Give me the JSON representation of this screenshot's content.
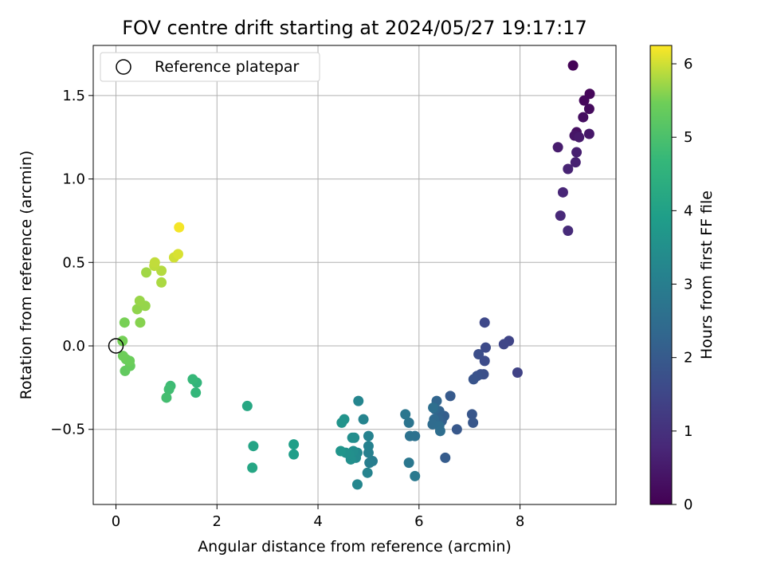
{
  "chart_data": {
    "type": "scatter",
    "title": "FOV centre drift starting at 2024/05/27 19:17:17",
    "xlabel": "Angular distance from reference (arcmin)",
    "ylabel": "Rotation from reference (arcmin)",
    "xlim": [
      -0.45,
      9.9
    ],
    "ylim": [
      -0.95,
      1.8
    ],
    "xticks": [
      0,
      2,
      4,
      6,
      8
    ],
    "yticks": [
      -0.5,
      0.0,
      0.5,
      1.0,
      1.5
    ],
    "xtick_labels": [
      "0",
      "2",
      "4",
      "6",
      "8"
    ],
    "ytick_labels": [
      "−0.5",
      "0.0",
      "0.5",
      "1.0",
      "1.5"
    ],
    "grid": true,
    "legend": {
      "placement": "upper-left",
      "entries": [
        {
          "label": "Reference platepar",
          "marker": "open-circle"
        }
      ]
    },
    "reference_point": {
      "x": 0,
      "y": 0
    },
    "colorbar": {
      "label": "Hours from first FF file",
      "colormap": "viridis",
      "range": [
        0,
        6.25
      ],
      "ticks": [
        0,
        1,
        2,
        3,
        4,
        5,
        6
      ],
      "tick_labels": [
        "0",
        "1",
        "2",
        "3",
        "4",
        "5",
        "6"
      ]
    },
    "series": [
      {
        "color_by": "hours",
        "points": [
          {
            "x": 9.05,
            "y": 1.68,
            "c": 0.05
          },
          {
            "x": 9.38,
            "y": 1.51,
            "c": 0.1
          },
          {
            "x": 9.27,
            "y": 1.47,
            "c": 0.15
          },
          {
            "x": 9.37,
            "y": 1.42,
            "c": 0.2
          },
          {
            "x": 9.25,
            "y": 1.37,
            "c": 0.25
          },
          {
            "x": 9.12,
            "y": 1.28,
            "c": 0.3
          },
          {
            "x": 9.14,
            "y": 1.26,
            "c": 0.35
          },
          {
            "x": 9.08,
            "y": 1.26,
            "c": 0.4
          },
          {
            "x": 9.37,
            "y": 1.27,
            "c": 0.45
          },
          {
            "x": 9.17,
            "y": 1.25,
            "c": 0.5
          },
          {
            "x": 8.75,
            "y": 1.19,
            "c": 0.55
          },
          {
            "x": 9.12,
            "y": 1.16,
            "c": 0.6
          },
          {
            "x": 9.1,
            "y": 1.1,
            "c": 0.65
          },
          {
            "x": 8.95,
            "y": 1.06,
            "c": 0.7
          },
          {
            "x": 8.85,
            "y": 0.92,
            "c": 0.75
          },
          {
            "x": 8.8,
            "y": 0.78,
            "c": 0.8
          },
          {
            "x": 8.95,
            "y": 0.69,
            "c": 0.85
          },
          {
            "x": 7.95,
            "y": -0.16,
            "c": 1.4
          },
          {
            "x": 7.78,
            "y": 0.03,
            "c": 1.45
          },
          {
            "x": 7.68,
            "y": 0.01,
            "c": 1.5
          },
          {
            "x": 7.3,
            "y": 0.14,
            "c": 1.55
          },
          {
            "x": 7.32,
            "y": -0.01,
            "c": 1.6
          },
          {
            "x": 7.3,
            "y": -0.09,
            "c": 1.65
          },
          {
            "x": 7.18,
            "y": -0.05,
            "c": 1.7
          },
          {
            "x": 7.28,
            "y": -0.17,
            "c": 1.72
          },
          {
            "x": 7.22,
            "y": -0.17,
            "c": 1.75
          },
          {
            "x": 7.15,
            "y": -0.18,
            "c": 1.8
          },
          {
            "x": 7.08,
            "y": -0.2,
            "c": 1.85
          },
          {
            "x": 7.05,
            "y": -0.41,
            "c": 1.9
          },
          {
            "x": 7.07,
            "y": -0.46,
            "c": 1.92
          },
          {
            "x": 6.75,
            "y": -0.5,
            "c": 1.95
          },
          {
            "x": 6.62,
            "y": -0.3,
            "c": 2.0
          },
          {
            "x": 6.52,
            "y": -0.67,
            "c": 2.05
          },
          {
            "x": 6.5,
            "y": -0.42,
            "c": 2.1
          },
          {
            "x": 6.45,
            "y": -0.45,
            "c": 2.15
          },
          {
            "x": 6.4,
            "y": -0.39,
            "c": 2.2
          },
          {
            "x": 6.38,
            "y": -0.44,
            "c": 2.25
          },
          {
            "x": 6.35,
            "y": -0.33,
            "c": 2.3
          },
          {
            "x": 6.32,
            "y": -0.38,
            "c": 2.35
          },
          {
            "x": 6.3,
            "y": -0.44,
            "c": 2.4
          },
          {
            "x": 6.27,
            "y": -0.47,
            "c": 2.45
          },
          {
            "x": 6.4,
            "y": -0.48,
            "c": 2.5
          },
          {
            "x": 6.42,
            "y": -0.51,
            "c": 2.52
          },
          {
            "x": 6.28,
            "y": -0.37,
            "c": 2.55
          },
          {
            "x": 5.92,
            "y": -0.54,
            "c": 2.6
          },
          {
            "x": 5.82,
            "y": -0.54,
            "c": 2.65
          },
          {
            "x": 5.8,
            "y": -0.46,
            "c": 2.7
          },
          {
            "x": 5.73,
            "y": -0.41,
            "c": 2.75
          },
          {
            "x": 5.8,
            "y": -0.7,
            "c": 2.8
          },
          {
            "x": 5.92,
            "y": -0.78,
            "c": 2.85
          },
          {
            "x": 5.08,
            "y": -0.69,
            "c": 2.95
          },
          {
            "x": 5.02,
            "y": -0.7,
            "c": 3.0
          },
          {
            "x": 5.0,
            "y": -0.64,
            "c": 3.05
          },
          {
            "x": 5.0,
            "y": -0.6,
            "c": 3.1
          },
          {
            "x": 5.0,
            "y": -0.54,
            "c": 3.12
          },
          {
            "x": 4.98,
            "y": -0.76,
            "c": 3.15
          },
          {
            "x": 4.9,
            "y": -0.44,
            "c": 3.18
          },
          {
            "x": 4.8,
            "y": -0.33,
            "c": 3.2
          },
          {
            "x": 4.78,
            "y": -0.83,
            "c": 3.25
          },
          {
            "x": 4.78,
            "y": -0.64,
            "c": 3.3
          },
          {
            "x": 4.75,
            "y": -0.67,
            "c": 3.35
          },
          {
            "x": 4.72,
            "y": -0.55,
            "c": 3.4
          },
          {
            "x": 4.7,
            "y": -0.63,
            "c": 3.42
          },
          {
            "x": 4.68,
            "y": -0.55,
            "c": 3.45
          },
          {
            "x": 4.65,
            "y": -0.68,
            "c": 3.48
          },
          {
            "x": 4.62,
            "y": -0.65,
            "c": 3.5
          },
          {
            "x": 4.55,
            "y": -0.64,
            "c": 3.55
          },
          {
            "x": 4.52,
            "y": -0.44,
            "c": 3.6
          },
          {
            "x": 4.47,
            "y": -0.46,
            "c": 3.62
          },
          {
            "x": 4.45,
            "y": -0.63,
            "c": 3.65
          },
          {
            "x": 3.52,
            "y": -0.65,
            "c": 3.9
          },
          {
            "x": 3.52,
            "y": -0.59,
            "c": 3.95
          },
          {
            "x": 2.72,
            "y": -0.6,
            "c": 4.1
          },
          {
            "x": 2.7,
            "y": -0.73,
            "c": 4.15
          },
          {
            "x": 2.6,
            "y": -0.36,
            "c": 4.2
          },
          {
            "x": 1.6,
            "y": -0.22,
            "c": 4.6
          },
          {
            "x": 1.58,
            "y": -0.28,
            "c": 4.65
          },
          {
            "x": 1.52,
            "y": -0.2,
            "c": 4.7
          },
          {
            "x": 1.08,
            "y": -0.24,
            "c": 4.8
          },
          {
            "x": 1.05,
            "y": -0.26,
            "c": 4.85
          },
          {
            "x": 1.0,
            "y": -0.31,
            "c": 4.9
          },
          {
            "x": 0.18,
            "y": -0.15,
            "c": 5.3
          },
          {
            "x": 0.28,
            "y": -0.12,
            "c": 5.35
          },
          {
            "x": 0.2,
            "y": -0.08,
            "c": 5.4
          },
          {
            "x": 0.27,
            "y": -0.09,
            "c": 5.42
          },
          {
            "x": 0.14,
            "y": -0.06,
            "c": 5.45
          },
          {
            "x": 0.13,
            "y": 0.03,
            "c": 5.5
          },
          {
            "x": 0.17,
            "y": 0.14,
            "c": 5.52
          },
          {
            "x": 0.48,
            "y": 0.14,
            "c": 5.6
          },
          {
            "x": 0.42,
            "y": 0.22,
            "c": 5.65
          },
          {
            "x": 0.58,
            "y": 0.24,
            "c": 5.68
          },
          {
            "x": 0.47,
            "y": 0.27,
            "c": 5.7
          },
          {
            "x": 0.6,
            "y": 0.44,
            "c": 5.75
          },
          {
            "x": 0.9,
            "y": 0.38,
            "c": 5.8
          },
          {
            "x": 0.9,
            "y": 0.45,
            "c": 5.85
          },
          {
            "x": 0.76,
            "y": 0.48,
            "c": 5.9
          },
          {
            "x": 0.77,
            "y": 0.5,
            "c": 5.92
          },
          {
            "x": 1.15,
            "y": 0.53,
            "c": 6.0
          },
          {
            "x": 1.23,
            "y": 0.55,
            "c": 6.05
          },
          {
            "x": 1.25,
            "y": 0.71,
            "c": 6.2
          }
        ]
      }
    ]
  }
}
